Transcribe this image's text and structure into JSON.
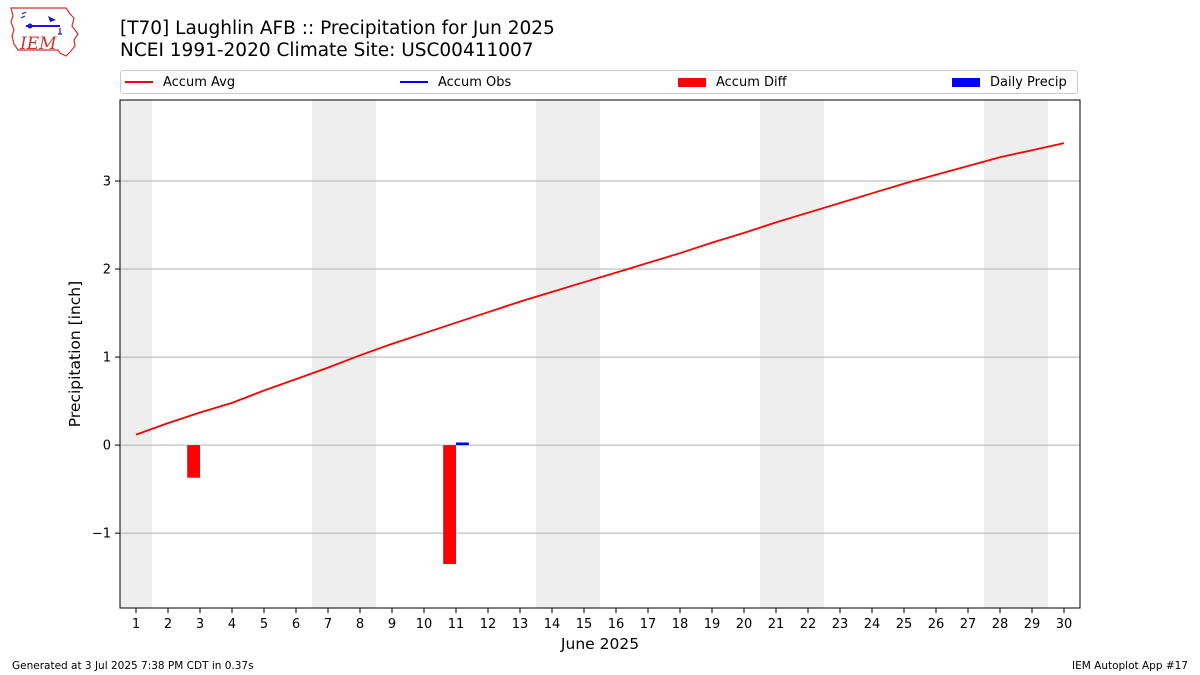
{
  "title_line1": "[T70] Laughlin AFB :: Precipitation for Jun 2025",
  "title_line2": "NCEI 1991-2020 Climate Site: USC00411007",
  "logo_text": "IEM",
  "footer_left": "Generated at 3 Jul 2025 7:38 PM CDT in 0.37s",
  "footer_right": "IEM Autoplot App #17",
  "colors": {
    "accum_avg": "#ff0000",
    "accum_obs": "#0000ff",
    "accum_diff": "#ff0000",
    "daily_precip": "#0000ff",
    "weekend_shade": "#eeeeee",
    "grid": "#b0b0b0"
  },
  "chart_data": {
    "type": "line",
    "xlabel": "June 2025",
    "ylabel": "Precipitation [inch]",
    "xlim": [
      0.5,
      30.5
    ],
    "ylim": [
      -1.85,
      3.92
    ],
    "x_ticks": [
      1,
      2,
      3,
      4,
      5,
      6,
      7,
      8,
      9,
      10,
      11,
      12,
      13,
      14,
      15,
      16,
      17,
      18,
      19,
      20,
      21,
      22,
      23,
      24,
      25,
      26,
      27,
      28,
      29,
      30
    ],
    "y_ticks": [
      -1,
      0,
      1,
      2,
      3
    ],
    "y_tick_labels": [
      "−1",
      "0",
      "1",
      "2",
      "3"
    ],
    "grid": "horizontal",
    "legend_position": "top",
    "legend": [
      {
        "label": "Accum Avg",
        "kind": "line",
        "color_key": "accum_avg"
      },
      {
        "label": "Accum Obs",
        "kind": "line",
        "color_key": "accum_obs"
      },
      {
        "label": "Accum Diff",
        "kind": "patch",
        "color_key": "accum_diff"
      },
      {
        "label": "Daily Precip",
        "kind": "patch",
        "color_key": "daily_precip"
      }
    ],
    "weekend_shading": [
      [
        0.5,
        1.5
      ],
      [
        6.5,
        8.5
      ],
      [
        13.5,
        15.5
      ],
      [
        20.5,
        22.5
      ],
      [
        27.5,
        29.5
      ]
    ],
    "series": [
      {
        "name": "Accum Avg",
        "type": "line",
        "x": [
          1,
          2,
          3,
          4,
          5,
          6,
          7,
          8,
          9,
          10,
          11,
          12,
          13,
          14,
          15,
          16,
          17,
          18,
          19,
          20,
          21,
          22,
          23,
          24,
          25,
          26,
          27,
          28,
          29,
          30
        ],
        "values": [
          0.12,
          0.25,
          0.37,
          0.48,
          0.62,
          0.75,
          0.88,
          1.02,
          1.15,
          1.27,
          1.39,
          1.51,
          1.63,
          1.74,
          1.85,
          1.96,
          2.07,
          2.18,
          2.3,
          2.41,
          2.53,
          2.64,
          2.75,
          2.86,
          2.97,
          3.07,
          3.17,
          3.27,
          3.35,
          3.43
        ]
      },
      {
        "name": "Accum Diff",
        "type": "bar",
        "x": [
          3,
          11
        ],
        "values": [
          -0.37,
          -1.35
        ]
      },
      {
        "name": "Daily Precip",
        "type": "bar",
        "x": [
          11
        ],
        "values": [
          0.03
        ]
      }
    ]
  }
}
